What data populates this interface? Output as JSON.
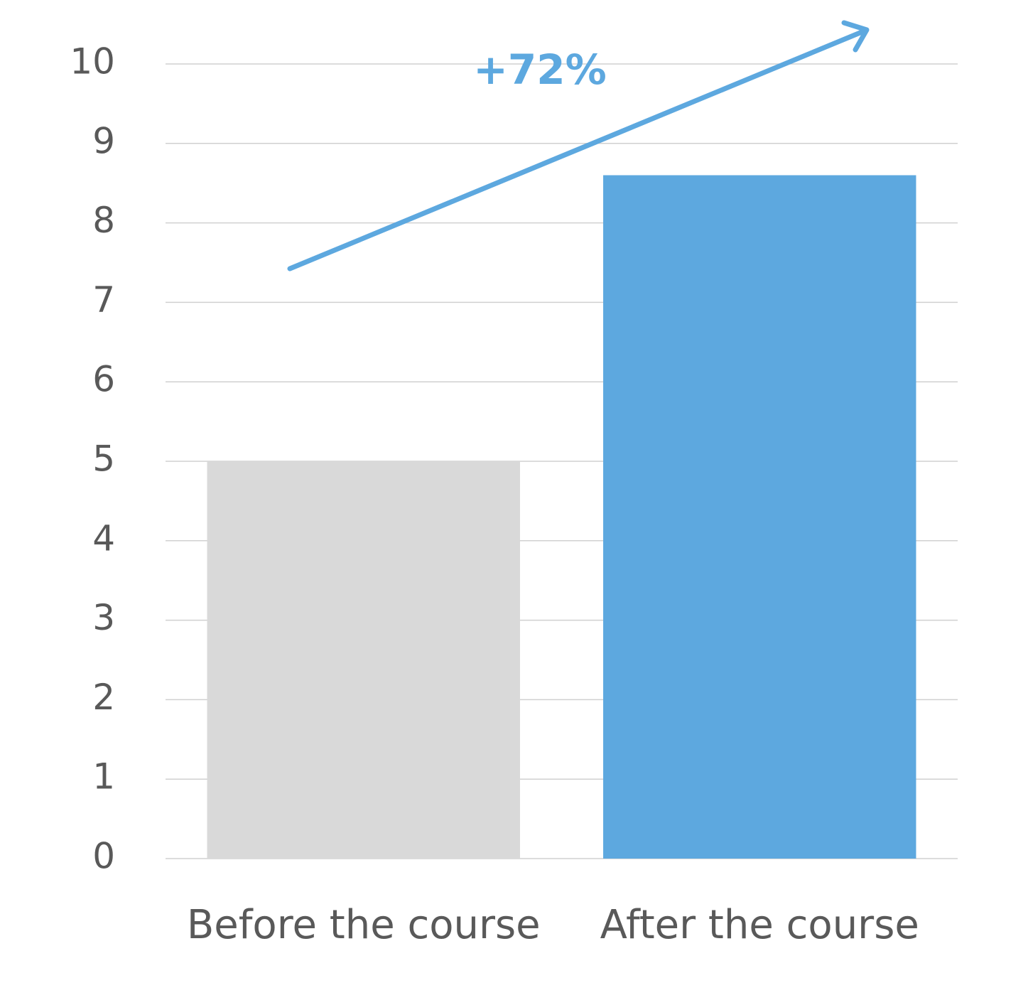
{
  "chart_data": {
    "type": "bar",
    "categories": [
      "Before the course",
      "After the course"
    ],
    "values": [
      5,
      8.6
    ],
    "colors": [
      "#d9d9d9",
      "#5da8df"
    ],
    "annotation": "+72%",
    "ylim": [
      0,
      10
    ],
    "yticks": [
      0,
      1,
      2,
      3,
      4,
      5,
      6,
      7,
      8,
      9,
      10
    ],
    "grid": true
  }
}
